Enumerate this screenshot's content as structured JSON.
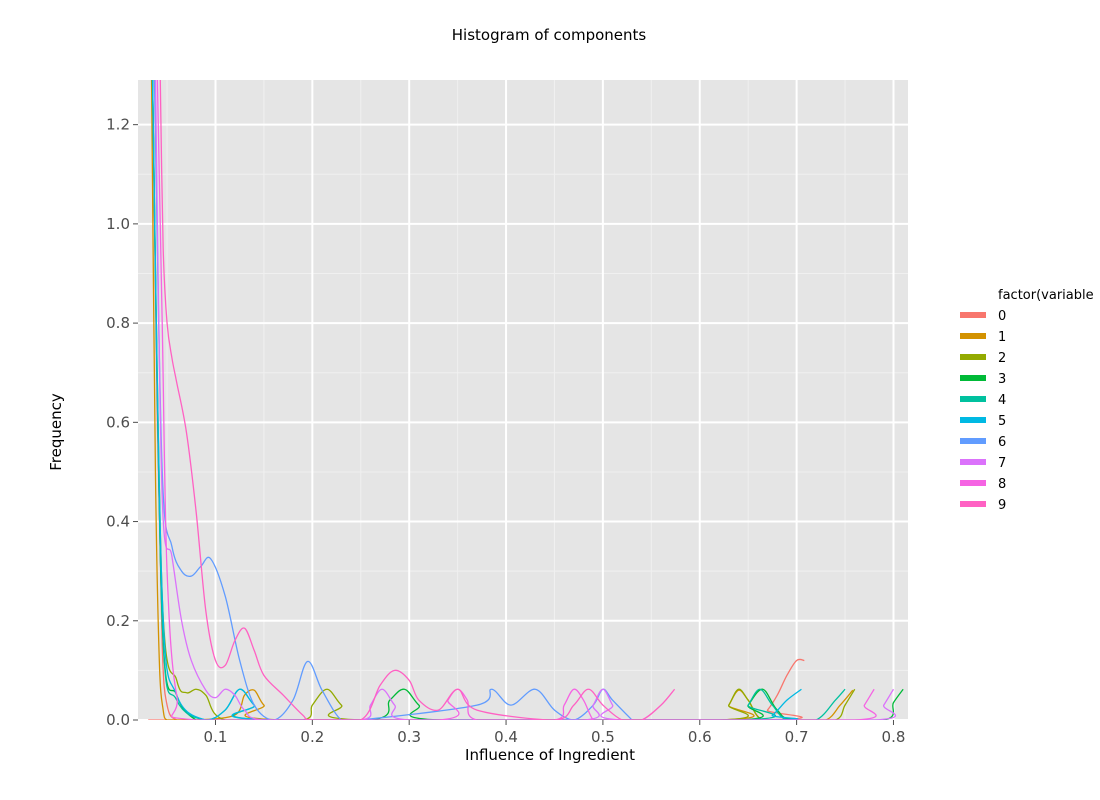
{
  "chart_data": {
    "type": "line",
    "title": "Histogram of components",
    "xlabel": "Influence of Ingredient",
    "ylabel": "Frequency",
    "xlim": [
      0.02,
      0.815
    ],
    "ylim": [
      0,
      1.29
    ],
    "x_ticks": [
      0.1,
      0.2,
      0.3,
      0.4,
      0.5,
      0.6,
      0.7,
      0.8
    ],
    "x_tick_labels": [
      "0.1",
      "0.2",
      "0.3",
      "0.4",
      "0.5",
      "0.6",
      "0.7",
      "0.8"
    ],
    "y_ticks": [
      0.0,
      0.2,
      0.4,
      0.6,
      0.8,
      1.0,
      1.2
    ],
    "y_tick_labels": [
      "0.0",
      "0.2",
      "0.4",
      "0.6",
      "0.8",
      "1.0",
      "1.2"
    ],
    "grid": true,
    "legend": {
      "title": "factor(variable",
      "position": "right"
    },
    "series": [
      {
        "name": "0",
        "color": "#F8766D",
        "x": [
          0.035,
          0.04,
          0.045,
          0.05,
          0.06,
          0.08,
          0.66,
          0.67,
          0.68,
          0.69,
          0.7,
          0.708
        ],
        "y": [
          1.29,
          0.6,
          0.15,
          0.03,
          0.0,
          0.0,
          0.0,
          0.02,
          0.05,
          0.09,
          0.12,
          0.12
        ]
      },
      {
        "name": "1",
        "color": "#D39200",
        "x": [
          0.034,
          0.038,
          0.042,
          0.046,
          0.05,
          0.06,
          0.08,
          0.12,
          0.13,
          0.14,
          0.15,
          0.17,
          0.62,
          0.63,
          0.64,
          0.65,
          0.665,
          0.7,
          0.73,
          0.745,
          0.758
        ],
        "y": [
          1.29,
          0.5,
          0.12,
          0.02,
          0.0,
          0.0,
          0.0,
          0.01,
          0.05,
          0.06,
          0.03,
          0.0,
          0.0,
          0.03,
          0.06,
          0.04,
          0.0,
          0.0,
          0.0,
          0.03,
          0.06
        ]
      },
      {
        "name": "2",
        "color": "#93AA00",
        "x": [
          0.035,
          0.045,
          0.06,
          0.07,
          0.08,
          0.09,
          0.11,
          0.19,
          0.2,
          0.215,
          0.23,
          0.25,
          0.62,
          0.63,
          0.64,
          0.65,
          0.665,
          0.7,
          0.74,
          0.75,
          0.76
        ],
        "y": [
          1.29,
          0.25,
          0.08,
          0.055,
          0.062,
          0.05,
          0.0,
          0.0,
          0.03,
          0.062,
          0.03,
          0.0,
          0.0,
          0.03,
          0.062,
          0.04,
          0.0,
          0.0,
          0.0,
          0.03,
          0.062
        ]
      },
      {
        "name": "3",
        "color": "#00BA38",
        "x": [
          0.035,
          0.045,
          0.06,
          0.08,
          0.1,
          0.26,
          0.28,
          0.295,
          0.31,
          0.33,
          0.64,
          0.65,
          0.665,
          0.68,
          0.7,
          0.79,
          0.8,
          0.81
        ],
        "y": [
          1.29,
          0.2,
          0.05,
          0.0,
          0.0,
          0.0,
          0.04,
          0.062,
          0.03,
          0.0,
          0.0,
          0.03,
          0.062,
          0.02,
          0.0,
          0.0,
          0.035,
          0.062
        ]
      },
      {
        "name": "4",
        "color": "#00C19F",
        "x": [
          0.035,
          0.045,
          0.06,
          0.09,
          0.11,
          0.125,
          0.14,
          0.16,
          0.64,
          0.65,
          0.662,
          0.675,
          0.69,
          0.72,
          0.74,
          0.75
        ],
        "y": [
          1.29,
          0.2,
          0.04,
          0.0,
          0.02,
          0.062,
          0.03,
          0.0,
          0.0,
          0.03,
          0.062,
          0.03,
          0.0,
          0.0,
          0.04,
          0.062
        ]
      },
      {
        "name": "5",
        "color": "#00B9E3",
        "x": [
          0.035,
          0.045,
          0.06,
          0.09,
          0.11,
          0.125,
          0.14,
          0.16,
          0.66,
          0.675,
          0.69,
          0.705
        ],
        "y": [
          1.29,
          0.25,
          0.05,
          0.0,
          0.02,
          0.062,
          0.03,
          0.0,
          0.0,
          0.01,
          0.04,
          0.062
        ]
      },
      {
        "name": "6",
        "color": "#619CFF",
        "x": [
          0.037,
          0.045,
          0.055,
          0.065,
          0.075,
          0.085,
          0.095,
          0.11,
          0.125,
          0.14,
          0.16,
          0.18,
          0.195,
          0.21,
          0.23,
          0.25,
          0.37,
          0.385,
          0.405,
          0.43,
          0.45,
          0.47,
          0.49,
          0.5,
          0.51,
          0.53
        ],
        "y": [
          1.29,
          0.5,
          0.35,
          0.3,
          0.29,
          0.31,
          0.325,
          0.25,
          0.12,
          0.03,
          0.0,
          0.04,
          0.118,
          0.06,
          0.0,
          0.0,
          0.03,
          0.062,
          0.03,
          0.062,
          0.02,
          0.0,
          0.03,
          0.062,
          0.04,
          0.0
        ]
      },
      {
        "name": "7",
        "color": "#DB72FB",
        "x": [
          0.038,
          0.045,
          0.055,
          0.065,
          0.075,
          0.09,
          0.1,
          0.11,
          0.12,
          0.13,
          0.15,
          0.25,
          0.26,
          0.272,
          0.285,
          0.3,
          0.48,
          0.49,
          0.5,
          0.51,
          0.52,
          0.78,
          0.79,
          0.8
        ],
        "y": [
          1.29,
          0.45,
          0.33,
          0.2,
          0.12,
          0.06,
          0.045,
          0.062,
          0.05,
          0.02,
          0.0,
          0.0,
          0.03,
          0.062,
          0.03,
          0.0,
          0.0,
          0.03,
          0.062,
          0.03,
          0.0,
          0.0,
          0.03,
          0.062
        ]
      },
      {
        "name": "8",
        "color": "#F564E3",
        "x": [
          0.04,
          0.045,
          0.05,
          0.06,
          0.08,
          0.33,
          0.34,
          0.35,
          0.36,
          0.37,
          0.45,
          0.46,
          0.47,
          0.48,
          0.49,
          0.5,
          0.76,
          0.77,
          0.78
        ],
        "y": [
          1.29,
          0.8,
          0.3,
          0.05,
          0.0,
          0.0,
          0.04,
          0.062,
          0.04,
          0.0,
          0.0,
          0.03,
          0.062,
          0.04,
          0.0,
          0.0,
          0.0,
          0.03,
          0.062
        ]
      },
      {
        "name": "9",
        "color": "#FF61C3",
        "x": [
          0.043,
          0.046,
          0.05,
          0.055,
          0.06,
          0.07,
          0.08,
          0.09,
          0.1,
          0.11,
          0.12,
          0.13,
          0.14,
          0.15,
          0.17,
          0.19,
          0.2,
          0.25,
          0.27,
          0.285,
          0.3,
          0.31,
          0.33,
          0.35,
          0.37,
          0.45,
          0.47,
          0.485,
          0.5,
          0.52,
          0.54,
          0.56,
          0.574
        ],
        "y": [
          1.29,
          0.95,
          0.8,
          0.73,
          0.68,
          0.58,
          0.42,
          0.22,
          0.12,
          0.11,
          0.16,
          0.185,
          0.14,
          0.09,
          0.05,
          0.01,
          0.0,
          0.0,
          0.07,
          0.1,
          0.08,
          0.04,
          0.02,
          0.062,
          0.02,
          0.0,
          0.03,
          0.062,
          0.03,
          0.0,
          0.0,
          0.03,
          0.062
        ]
      }
    ]
  }
}
